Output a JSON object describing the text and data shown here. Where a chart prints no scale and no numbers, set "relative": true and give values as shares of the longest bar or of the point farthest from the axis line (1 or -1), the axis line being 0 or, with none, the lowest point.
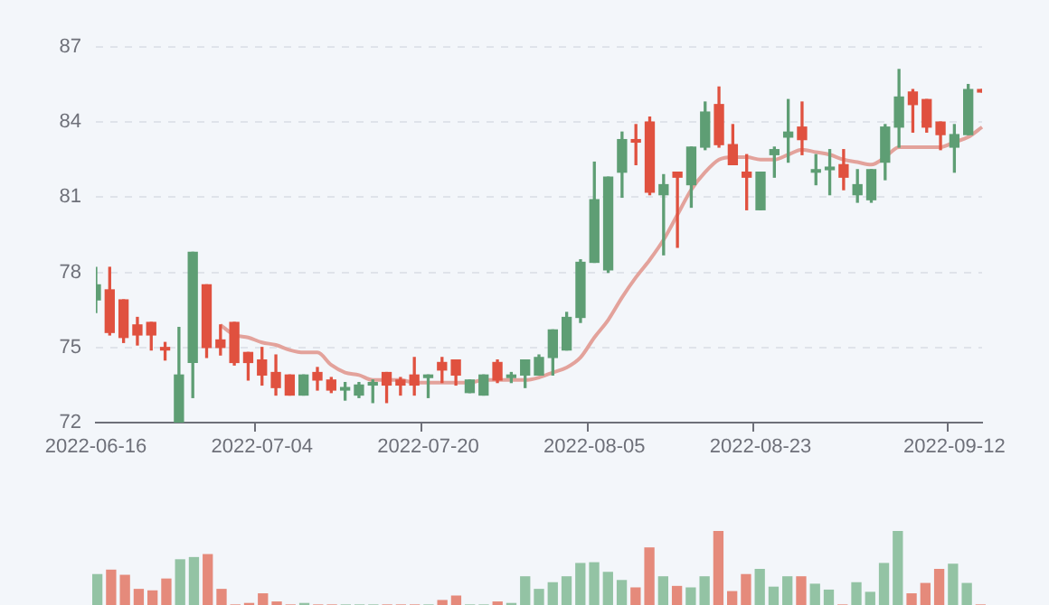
{
  "chart_data": [
    {
      "type": "candlestick",
      "categories": [
        "2022-06-16",
        null,
        null,
        null,
        null,
        null,
        null,
        null,
        null,
        null,
        null,
        null,
        "2022-07-04",
        null,
        null,
        null,
        null,
        null,
        null,
        null,
        null,
        null,
        null,
        null,
        "2022-07-20",
        null,
        null,
        null,
        null,
        null,
        null,
        null,
        null,
        null,
        null,
        null,
        "2022-08-05",
        null,
        null,
        null,
        null,
        null,
        null,
        null,
        null,
        null,
        null,
        null,
        "2022-08-23",
        null,
        null,
        null,
        null,
        null,
        null,
        null,
        null,
        null,
        null,
        null,
        null,
        null,
        "2022-09-12",
        null,
        null
      ],
      "ohlc": [
        [
          76.9,
          78.2,
          76.4,
          77.5
        ],
        [
          77.3,
          78.2,
          75.5,
          75.6
        ],
        [
          76.9,
          76.9,
          75.2,
          75.4
        ],
        [
          75.9,
          76.2,
          75.1,
          75.5
        ],
        [
          76.0,
          76.0,
          74.9,
          75.5
        ],
        [
          75.0,
          75.2,
          74.5,
          74.9
        ],
        [
          72.0,
          75.8,
          72.0,
          73.9
        ],
        [
          74.4,
          78.8,
          73.0,
          78.8
        ],
        [
          77.5,
          77.5,
          74.6,
          75.0
        ],
        [
          75.3,
          75.9,
          74.7,
          75.0
        ],
        [
          76.0,
          76.0,
          74.3,
          74.4
        ],
        [
          74.8,
          74.8,
          73.7,
          74.4
        ],
        [
          74.5,
          75.0,
          73.5,
          73.9
        ],
        [
          74.0,
          74.7,
          73.1,
          73.4
        ],
        [
          73.9,
          73.9,
          73.1,
          73.1
        ],
        [
          73.1,
          73.9,
          73.1,
          73.9
        ],
        [
          74.0,
          74.2,
          73.3,
          73.7
        ],
        [
          73.7,
          73.8,
          73.2,
          73.3
        ],
        [
          73.3,
          73.6,
          72.9,
          73.4
        ],
        [
          73.1,
          73.6,
          73.0,
          73.5
        ],
        [
          73.5,
          73.7,
          72.8,
          73.6
        ],
        [
          74.0,
          74.0,
          72.8,
          73.5
        ],
        [
          73.7,
          73.8,
          73.1,
          73.5
        ],
        [
          73.9,
          74.6,
          73.1,
          73.5
        ],
        [
          73.8,
          73.9,
          73.0,
          73.9
        ],
        [
          74.4,
          74.6,
          73.6,
          74.1
        ],
        [
          74.5,
          74.5,
          73.5,
          73.9
        ],
        [
          73.2,
          73.7,
          73.2,
          73.7
        ],
        [
          73.1,
          73.9,
          73.1,
          73.9
        ],
        [
          74.4,
          74.5,
          73.6,
          73.7
        ],
        [
          73.8,
          74.0,
          73.6,
          73.9
        ],
        [
          73.9,
          74.5,
          73.4,
          74.5
        ],
        [
          73.9,
          74.7,
          73.9,
          74.6
        ],
        [
          74.6,
          75.7,
          73.9,
          75.7
        ],
        [
          74.9,
          76.4,
          74.9,
          76.2
        ],
        [
          76.2,
          78.5,
          76.0,
          78.4
        ],
        [
          78.4,
          82.4,
          78.4,
          80.9
        ],
        [
          78.1,
          81.8,
          78.0,
          81.8
        ],
        [
          82.0,
          83.6,
          81.0,
          83.3
        ],
        [
          83.3,
          83.9,
          82.3,
          83.2
        ],
        [
          84.0,
          84.2,
          81.1,
          81.2
        ],
        [
          81.1,
          81.9,
          78.7,
          81.5
        ],
        [
          82.0,
          82.0,
          79.0,
          81.8
        ],
        [
          81.5,
          83.0,
          80.6,
          83.0
        ],
        [
          83.0,
          84.8,
          82.9,
          84.4
        ],
        [
          84.7,
          85.4,
          83.0,
          83.1
        ],
        [
          83.1,
          83.9,
          82.3,
          82.3
        ],
        [
          82.0,
          82.7,
          80.5,
          81.8
        ],
        [
          80.5,
          82.0,
          80.5,
          82.0
        ],
        [
          82.7,
          83.0,
          81.8,
          82.9
        ],
        [
          83.4,
          84.9,
          82.4,
          83.6
        ],
        [
          83.8,
          84.8,
          82.7,
          83.3
        ],
        [
          82.0,
          82.7,
          81.5,
          82.1
        ],
        [
          82.1,
          82.9,
          81.1,
          82.2
        ],
        [
          82.3,
          82.9,
          81.3,
          81.8
        ],
        [
          81.1,
          82.1,
          80.8,
          81.5
        ],
        [
          80.9,
          82.1,
          80.8,
          82.1
        ],
        [
          82.4,
          83.9,
          81.7,
          83.8
        ],
        [
          83.8,
          86.1,
          83.0,
          85.0
        ],
        [
          85.2,
          85.3,
          83.6,
          84.7
        ],
        [
          84.9,
          84.9,
          83.6,
          83.8
        ],
        [
          84.0,
          84.0,
          82.9,
          83.5
        ],
        [
          83.0,
          83.9,
          82.0,
          83.5
        ],
        [
          83.5,
          85.5,
          83.5,
          85.3
        ],
        [
          85.3,
          85.3,
          85.2,
          85.2
        ]
      ],
      "colors": [
        "#5e9e74",
        "#e0513f",
        "#e0513f",
        "#e0513f",
        "#e0513f",
        "#e0513f",
        "#5e9e74",
        "#5e9e74",
        "#e0513f",
        "#e0513f",
        "#e0513f",
        "#e0513f",
        "#e0513f",
        "#e0513f",
        "#e0513f",
        "#5e9e74",
        "#e0513f",
        "#e0513f",
        "#5e9e74",
        "#5e9e74",
        "#5e9e74",
        "#e0513f",
        "#e0513f",
        "#e0513f",
        "#5e9e74",
        "#e0513f",
        "#e0513f",
        "#5e9e74",
        "#5e9e74",
        "#e0513f",
        "#5e9e74",
        "#5e9e74",
        "#5e9e74",
        "#5e9e74",
        "#5e9e74",
        "#5e9e74",
        "#5e9e74",
        "#5e9e74",
        "#5e9e74",
        "#e0513f",
        "#e0513f",
        "#5e9e74",
        "#e0513f",
        "#5e9e74",
        "#5e9e74",
        "#e0513f",
        "#e0513f",
        "#e0513f",
        "#5e9e74",
        "#5e9e74",
        "#5e9e74",
        "#e0513f",
        "#5e9e74",
        "#5e9e74",
        "#e0513f",
        "#5e9e74",
        "#5e9e74",
        "#5e9e74",
        "#5e9e74",
        "#e0513f",
        "#e0513f",
        "#e0513f",
        "#5e9e74",
        "#5e9e74",
        "#e0513f"
      ],
      "series": [
        {
          "type": "line",
          "color": "#e3a29b",
          "values": [
            null,
            null,
            null,
            null,
            null,
            null,
            null,
            null,
            null,
            75.9,
            75.5,
            75.4,
            75.2,
            75.1,
            74.9,
            74.8,
            74.8,
            74.3,
            74.0,
            73.9,
            73.7,
            73.7,
            73.7,
            73.6,
            73.6,
            73.6,
            73.6,
            73.6,
            73.7,
            73.7,
            73.7,
            73.7,
            73.8,
            74.0,
            74.2,
            74.6,
            75.4,
            76.1,
            77.0,
            77.8,
            78.5,
            79.3,
            80.3,
            81.3,
            82.0,
            82.5,
            82.6,
            82.6,
            82.5,
            82.5,
            82.7,
            82.9,
            82.8,
            82.7,
            82.5,
            82.4,
            82.3,
            82.6,
            83.0,
            83.0,
            83.0,
            83.0,
            83.2,
            83.4,
            83.8
          ]
        }
      ],
      "ylim": [
        72,
        87
      ],
      "yticks": [
        72,
        75,
        78,
        81,
        84,
        87
      ],
      "grid": "y",
      "legend": false
    },
    {
      "type": "bar",
      "relative": true,
      "categories": [
        null,
        null,
        null,
        null,
        null,
        null,
        null,
        null,
        null,
        null,
        null,
        null,
        null,
        null,
        null,
        null,
        null,
        null,
        null,
        null,
        null,
        null,
        null,
        null,
        null,
        null,
        null,
        null,
        null,
        null,
        null,
        null,
        null,
        null,
        null,
        null,
        null,
        null,
        null,
        null,
        null,
        null,
        null,
        null,
        null,
        null,
        null,
        null,
        null,
        null,
        null,
        null,
        null,
        null,
        null,
        null,
        null,
        null,
        null,
        null,
        null,
        null,
        null,
        null,
        null
      ],
      "values": [
        0.41,
        0.47,
        0.4,
        0.21,
        0.19,
        0.35,
        0.61,
        0.64,
        0.68,
        0.21,
        0,
        0.02,
        0.15,
        0.04,
        0,
        0.02,
        0,
        0,
        0,
        0,
        0,
        0,
        0,
        0,
        0,
        0.06,
        0.12,
        0,
        0,
        0.04,
        0.02,
        0.38,
        0.21,
        0.3,
        0.38,
        0.56,
        0.57,
        0.44,
        0.33,
        0.23,
        0.77,
        0.38,
        0.25,
        0.23,
        0.38,
        1,
        0.18,
        0.41,
        0.48,
        0.24,
        0.38,
        0.38,
        0.28,
        0.2,
        0,
        0.3,
        0.17,
        0.56,
        1,
        0.15,
        0.29,
        0.48,
        0.55,
        0.29,
        0
      ],
      "colors": [
        "#93c3a4",
        "#e58a7b",
        "#e58a7b",
        "#e58a7b",
        "#e58a7b",
        "#e58a7b",
        "#93c3a4",
        "#93c3a4",
        "#e58a7b",
        "#e58a7b",
        "#e58a7b",
        "#e58a7b",
        "#e58a7b",
        "#e58a7b",
        "#e58a7b",
        "#93c3a4",
        "#e58a7b",
        "#e58a7b",
        "#93c3a4",
        "#93c3a4",
        "#93c3a4",
        "#e58a7b",
        "#e58a7b",
        "#e58a7b",
        "#93c3a4",
        "#e58a7b",
        "#e58a7b",
        "#93c3a4",
        "#93c3a4",
        "#e58a7b",
        "#93c3a4",
        "#93c3a4",
        "#93c3a4",
        "#93c3a4",
        "#93c3a4",
        "#93c3a4",
        "#93c3a4",
        "#93c3a4",
        "#93c3a4",
        "#e58a7b",
        "#e58a7b",
        "#93c3a4",
        "#e58a7b",
        "#93c3a4",
        "#93c3a4",
        "#e58a7b",
        "#e58a7b",
        "#e58a7b",
        "#93c3a4",
        "#93c3a4",
        "#93c3a4",
        "#e58a7b",
        "#93c3a4",
        "#93c3a4",
        "#e58a7b",
        "#93c3a4",
        "#93c3a4",
        "#93c3a4",
        "#93c3a4",
        "#e58a7b",
        "#e58a7b",
        "#e58a7b",
        "#93c3a4",
        "#93c3a4",
        "#e58a7b"
      ]
    }
  ]
}
